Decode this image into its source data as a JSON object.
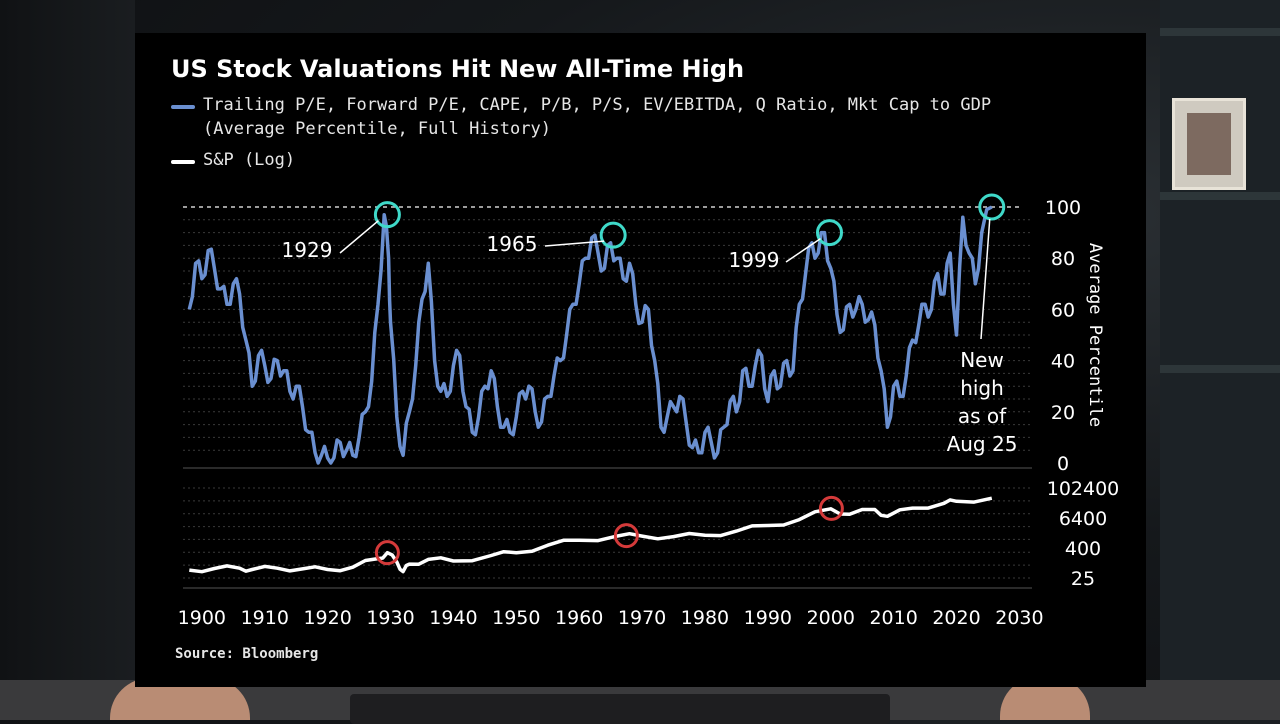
{
  "colors": {
    "valuation_line": "#6a8fd0",
    "sp_line": "#ffffff",
    "peak_circle_top": "#3fd9c9",
    "peak_circle_bottom": "#d43a3a",
    "background": "#000000",
    "grid": "#3a3a3a"
  },
  "chart_data": {
    "type": "line",
    "title": "US Stock Valuations Hit New All-Time High",
    "source": "Source: Bloomberg",
    "legend": [
      {
        "label": "Trailing P/E, Forward P/E, CAPE, P/B, P/S, EV/EBITDA, Q Ratio, Mkt Cap to GDP",
        "label2": "(Average Percentile, Full History)",
        "color": "#6a8fd0"
      },
      {
        "label": "S&P (Log)",
        "color": "#ffffff"
      }
    ],
    "xlim": [
      1897,
      2032
    ],
    "x_ticks": [
      "1900",
      "1910",
      "1920",
      "1930",
      "1940",
      "1950",
      "1960",
      "1970",
      "1980",
      "1990",
      "2000",
      "2010",
      "2020",
      "2030"
    ],
    "x_tick_values": [
      1900,
      1910,
      1920,
      1930,
      1940,
      1950,
      1960,
      1970,
      1980,
      1990,
      2000,
      2010,
      2020,
      2030
    ],
    "top_panel": {
      "ylabel": "Average Percentile",
      "ylim": [
        0,
        100
      ],
      "y_ticks": [
        "0",
        "20",
        "40",
        "60",
        "80",
        "100"
      ],
      "y_tick_values": [
        0,
        20,
        40,
        60,
        80,
        100
      ],
      "reference_line": 100,
      "series": [
        {
          "name": "Trailing P/E, Forward P/E, CAPE, P/B, P/S, EV/EBITDA, Q Ratio, Mkt Cap to GDP",
          "x": [
            1898,
            1899,
            1900,
            1901,
            1902,
            1903,
            1904,
            1905,
            1906,
            1907,
            1908,
            1909,
            1910,
            1911,
            1912,
            1913,
            1914,
            1915,
            1916,
            1917,
            1918,
            1919,
            1920,
            1921,
            1922,
            1923,
            1924,
            1925,
            1926,
            1927,
            1928,
            1929,
            1929.7,
            1930,
            1931,
            1932,
            1933,
            1934,
            1935,
            1936,
            1937,
            1938,
            1939,
            1940,
            1941,
            1942,
            1943,
            1944,
            1945,
            1946,
            1947,
            1948,
            1949,
            1950,
            1951,
            1952,
            1953,
            1954,
            1955,
            1956,
            1957,
            1958,
            1959,
            1960,
            1961,
            1962,
            1963,
            1964,
            1965,
            1966,
            1967,
            1968,
            1969,
            1970,
            1971,
            1972,
            1973,
            1974,
            1975,
            1976,
            1977,
            1978,
            1979,
            1980,
            1981,
            1982,
            1983,
            1984,
            1985,
            1986,
            1987,
            1988,
            1989,
            1990,
            1991,
            1992,
            1993,
            1994,
            1995,
            1996,
            1997,
            1998,
            1999,
            2000,
            2001,
            2002,
            2003,
            2004,
            2005,
            2006,
            2007,
            2008,
            2009,
            2010,
            2011,
            2012,
            2013,
            2014,
            2015,
            2016,
            2017,
            2018,
            2019,
            2020,
            2021,
            2022,
            2023,
            2024,
            2025.6
          ],
          "y": [
            60,
            78,
            72,
            83,
            76,
            68,
            62,
            70,
            66,
            48,
            30,
            42,
            38,
            33,
            40,
            36,
            28,
            30,
            22,
            12,
            4,
            3,
            2,
            2,
            8,
            5,
            3,
            10,
            20,
            32,
            62,
            97,
            80,
            55,
            18,
            3,
            20,
            38,
            64,
            78,
            40,
            28,
            26,
            38,
            42,
            22,
            12,
            18,
            30,
            36,
            22,
            14,
            12,
            18,
            28,
            30,
            20,
            16,
            26,
            34,
            40,
            50,
            62,
            70,
            80,
            88,
            82,
            76,
            86,
            80,
            72,
            78,
            62,
            55,
            60,
            40,
            14,
            18,
            22,
            26,
            16,
            6,
            4,
            12,
            8,
            4,
            14,
            24,
            20,
            36,
            30,
            38,
            42,
            24,
            36,
            30,
            40,
            36,
            62,
            74,
            86,
            82,
            90,
            76,
            58,
            52,
            62,
            60,
            62,
            56,
            54,
            36,
            14,
            30,
            26,
            34,
            48,
            54,
            62,
            60,
            74,
            66,
            82,
            50,
            96,
            82,
            70,
            90,
            100
          ]
        }
      ]
    },
    "bottom_panel": {
      "ylim_log": [
        25,
        102400
      ],
      "y_ticks": [
        "25",
        "400",
        "6400",
        "102400"
      ],
      "y_tick_values": [
        25,
        400,
        6400,
        102400
      ],
      "series": [
        {
          "name": "S&P (Log)",
          "x": [
            1898,
            1902,
            1906,
            1908,
            1912,
            1916,
            1920,
            1924,
            1928,
            1929.5,
            1931,
            1932,
            1933,
            1936,
            1940,
            1946,
            1950,
            1955,
            1960,
            1966,
            1970,
            1975,
            1980,
            1985,
            1990,
            1995,
            2000,
            2003,
            2007,
            2009,
            2013,
            2018,
            2020,
            2025.6
          ],
          "y": [
            52,
            60,
            62,
            55,
            62,
            58,
            55,
            68,
            150,
            260,
            110,
            45,
            90,
            140,
            120,
            200,
            260,
            520,
            820,
            1200,
            1200,
            1150,
            1300,
            1900,
            3200,
            5500,
            15000,
            9000,
            14000,
            7500,
            16000,
            25000,
            30000,
            40000
          ]
        }
      ]
    },
    "annotations": [
      {
        "text": "1929",
        "x": 1929.5,
        "y": 97
      },
      {
        "text": "1965",
        "x": 1965.4,
        "y": 89
      },
      {
        "text": "1999",
        "x": 1999.8,
        "y": 90
      },
      {
        "lines": [
          "New",
          "high",
          "as of",
          "Aug 25"
        ],
        "x": 2025.6,
        "y": 100
      }
    ],
    "bottom_circles": [
      {
        "x": 1929.5,
        "y": 260
      },
      {
        "x": 1967.5,
        "y": 1250
      },
      {
        "x": 2000.1,
        "y": 15500
      }
    ]
  }
}
